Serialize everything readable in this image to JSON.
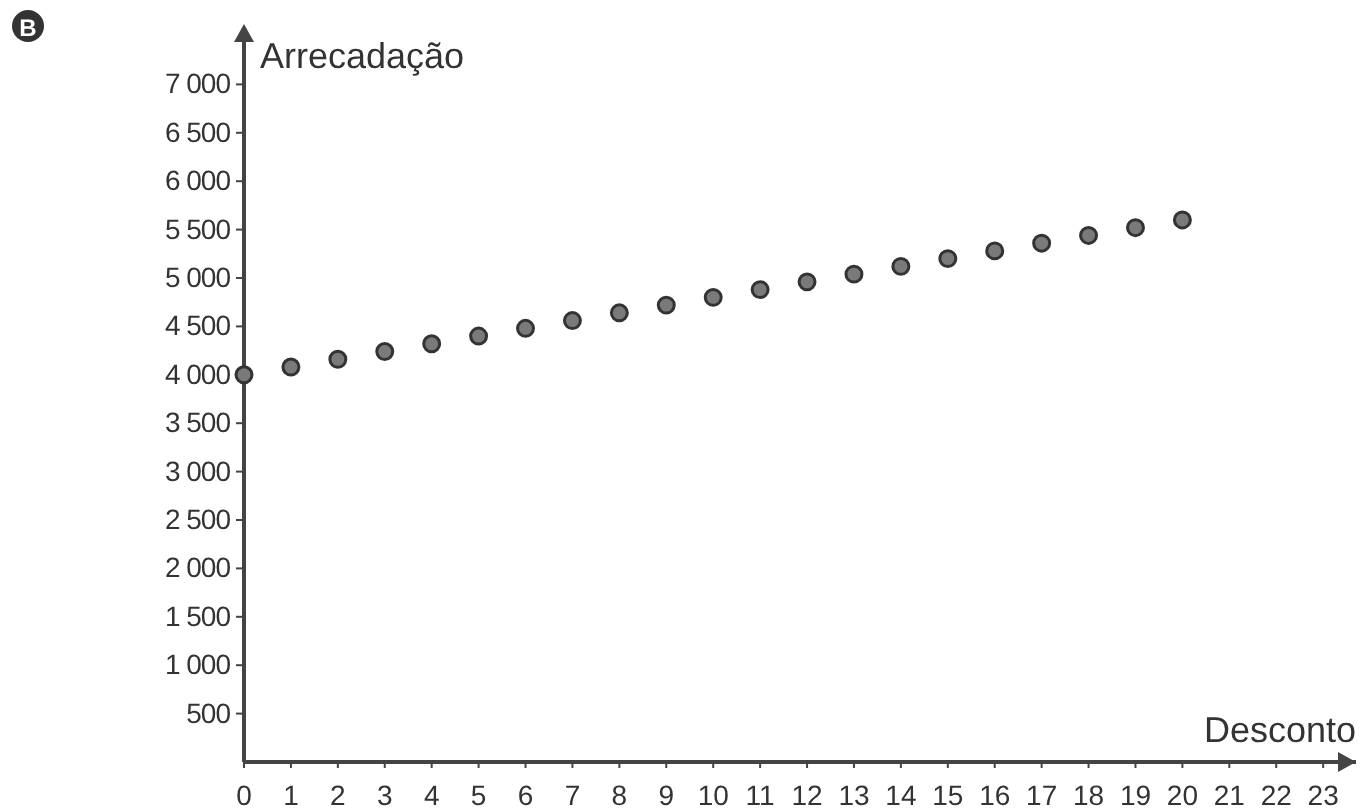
{
  "chart_data": {
    "type": "scatter",
    "xlabel": "Desconto",
    "ylabel": "Arrecadação",
    "annotations": [
      "B"
    ],
    "x": [
      0,
      1,
      2,
      3,
      4,
      5,
      6,
      7,
      8,
      9,
      10,
      11,
      12,
      13,
      14,
      15,
      16,
      17,
      18,
      19,
      20
    ],
    "values": [
      4000,
      4080,
      4160,
      4240,
      4320,
      4400,
      4480,
      4560,
      4640,
      4720,
      4800,
      4880,
      4960,
      5040,
      5120,
      5200,
      5280,
      5360,
      5440,
      5520,
      5600
    ],
    "color": "#7a7a7a",
    "marker": "circle",
    "grid": false,
    "xlim": [
      0,
      23.7
    ],
    "xticks": [
      0,
      1,
      2,
      3,
      4,
      5,
      6,
      7,
      8,
      9,
      10,
      11,
      12,
      13,
      14,
      15,
      16,
      17,
      18,
      19,
      20,
      21,
      22,
      23
    ],
    "ylim": [
      0,
      7500
    ],
    "yticks": [
      500,
      {
        "value": 1000,
        "label": "1 000"
      },
      {
        "value": 1500,
        "label": "1 500"
      },
      {
        "value": 2000,
        "label": "2 000"
      },
      {
        "value": 2500,
        "label": "2 500"
      },
      {
        "value": 3000,
        "label": "3 000"
      },
      {
        "value": 3500,
        "label": "3 500"
      },
      {
        "value": 4000,
        "label": "4 000"
      },
      {
        "value": 4500,
        "label": "4 500"
      },
      {
        "value": 5000,
        "label": "5 000"
      },
      {
        "value": 5500,
        "label": "5 500"
      },
      {
        "value": 6000,
        "label": "6 000"
      },
      {
        "value": 6500,
        "label": "6 500"
      },
      {
        "value": 7000,
        "label": "7 000"
      }
    ]
  }
}
